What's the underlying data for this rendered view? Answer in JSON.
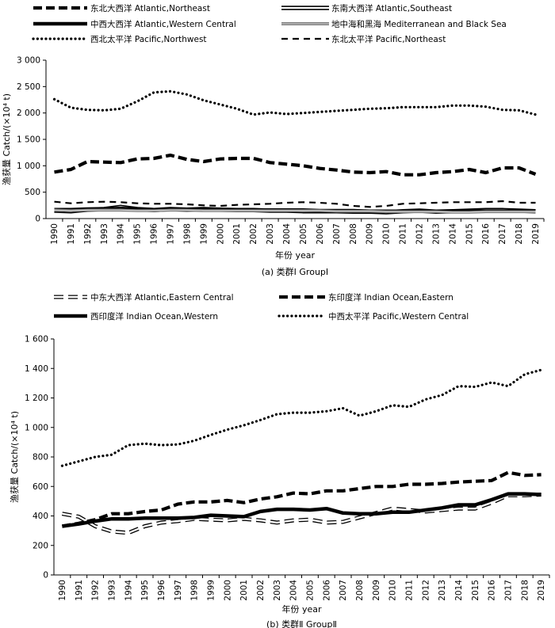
{
  "chart_data": [
    {
      "type": "line",
      "caption": "(a) 类群Ⅰ GroupⅠ",
      "xlabel": "年份 year",
      "ylabel": "渔获量 Catch/(×10⁴ t)",
      "ylim": [
        0,
        3000
      ],
      "ytick_labels": [
        "0",
        "500",
        "1 000",
        "1 500",
        "2 000",
        "2 500",
        "3 000"
      ],
      "x": [
        "1990",
        "1991",
        "1992",
        "1993",
        "1994",
        "1995",
        "1996",
        "1997",
        "1998",
        "1999",
        "2000",
        "2001",
        "2002",
        "2003",
        "2004",
        "2005",
        "2006",
        "2007",
        "2008",
        "2009",
        "2010",
        "2011",
        "2012",
        "2013",
        "2014",
        "2015",
        "2016",
        "2017",
        "2018",
        "2019"
      ],
      "series": [
        {
          "name": "东北大西洋 Atlantic,Northeast",
          "style": "thick-dash",
          "color": "#000000",
          "values": [
            880,
            930,
            1080,
            1070,
            1060,
            1130,
            1140,
            1200,
            1120,
            1080,
            1130,
            1140,
            1140,
            1060,
            1030,
            1000,
            950,
            920,
            880,
            870,
            890,
            830,
            830,
            870,
            890,
            930,
            870,
            960,
            960,
            840
          ]
        },
        {
          "name": "东南大西洋 Atlantic,Southeast",
          "style": "double-line",
          "color": "#000000",
          "values": [
            150,
            140,
            170,
            180,
            220,
            180,
            160,
            180,
            170,
            180,
            170,
            160,
            160,
            150,
            150,
            140,
            140,
            140,
            130,
            130,
            120,
            140,
            150,
            130,
            140,
            150,
            160,
            160,
            150,
            140
          ]
        },
        {
          "name": "中西大西洋 Atlantic,Western Central",
          "style": "thick-solid",
          "color": "#000000",
          "values": [
            170,
            170,
            180,
            180,
            190,
            180,
            170,
            170,
            170,
            170,
            170,
            170,
            160,
            160,
            160,
            160,
            150,
            150,
            150,
            140,
            140,
            140,
            140,
            140,
            140,
            140,
            140,
            140,
            140,
            140
          ]
        },
        {
          "name": "地中海和黑海 Mediterranean and Black Sea",
          "style": "thin-double",
          "color": "#777777",
          "values": [
            160,
            150,
            160,
            160,
            160,
            150,
            150,
            160,
            160,
            150,
            150,
            150,
            150,
            150,
            150,
            150,
            150,
            140,
            140,
            140,
            130,
            130,
            130,
            130,
            120,
            120,
            130,
            130,
            130,
            130
          ]
        },
        {
          "name": "西北太平洋 Pacific,Northwest",
          "style": "dotted",
          "color": "#000000",
          "values": [
            2260,
            2100,
            2060,
            2050,
            2080,
            2220,
            2390,
            2410,
            2350,
            2240,
            2160,
            2080,
            1970,
            2010,
            1980,
            2000,
            2020,
            2040,
            2060,
            2080,
            2090,
            2110,
            2110,
            2110,
            2140,
            2140,
            2120,
            2060,
            2050,
            1970
          ]
        },
        {
          "name": "东北太平洋 Pacific,Northeast",
          "style": "thin-dash",
          "color": "#000000",
          "values": [
            320,
            290,
            310,
            320,
            310,
            290,
            280,
            280,
            270,
            250,
            240,
            260,
            270,
            280,
            300,
            310,
            300,
            280,
            240,
            220,
            240,
            280,
            290,
            300,
            310,
            310,
            310,
            330,
            300,
            300
          ]
        }
      ]
    },
    {
      "type": "line",
      "caption": "(b) 类群Ⅱ GroupⅡ",
      "xlabel": "年份 year",
      "ylabel": "渔获量 Catch/(×10⁴ t)",
      "ylim": [
        0,
        1600
      ],
      "ytick_labels": [
        "0",
        "200",
        "400",
        "600",
        "800",
        "1 000",
        "1 200",
        "1 400",
        "1 600"
      ],
      "x": [
        "1990",
        "1991",
        "1992",
        "1993",
        "1994",
        "1995",
        "1996",
        "1997",
        "1998",
        "1999",
        "2000",
        "2001",
        "2002",
        "2003",
        "2004",
        "2005",
        "2006",
        "2007",
        "2008",
        "2009",
        "2010",
        "2011",
        "2012",
        "2013",
        "2014",
        "2015",
        "2016",
        "2017",
        "2018",
        "2019"
      ],
      "series": [
        {
          "name": "中东大西洋 Atlantic,Eastern Central",
          "style": "open-dash",
          "color": "#000000",
          "values": [
            415,
            395,
            330,
            295,
            285,
            330,
            355,
            365,
            380,
            375,
            370,
            380,
            370,
            355,
            370,
            375,
            355,
            360,
            390,
            420,
            450,
            440,
            430,
            440,
            450,
            450,
            490,
            540,
            540,
            545
          ]
        },
        {
          "name": "东印度洋 Indian Ocean,Eastern",
          "style": "thick-dash",
          "color": "#000000",
          "values": [
            330,
            350,
            375,
            415,
            415,
            430,
            440,
            480,
            495,
            495,
            505,
            490,
            515,
            530,
            555,
            550,
            570,
            570,
            585,
            600,
            600,
            615,
            615,
            620,
            630,
            635,
            640,
            695,
            675,
            680
          ]
        },
        {
          "name": "西印度洋 Indian Ocean,Western",
          "style": "thick-solid",
          "color": "#000000",
          "values": [
            330,
            345,
            365,
            380,
            380,
            385,
            385,
            385,
            390,
            405,
            400,
            395,
            430,
            445,
            445,
            440,
            450,
            420,
            415,
            415,
            425,
            425,
            440,
            455,
            475,
            475,
            510,
            550,
            550,
            545
          ]
        },
        {
          "name": "中西太平洋 Pacific,Western Central",
          "style": "dotted",
          "color": "#000000",
          "values": [
            740,
            770,
            800,
            815,
            880,
            890,
            880,
            885,
            910,
            950,
            985,
            1015,
            1050,
            1090,
            1100,
            1100,
            1110,
            1130,
            1080,
            1110,
            1150,
            1140,
            1190,
            1220,
            1280,
            1275,
            1305,
            1280,
            1360,
            1390
          ]
        }
      ]
    }
  ]
}
